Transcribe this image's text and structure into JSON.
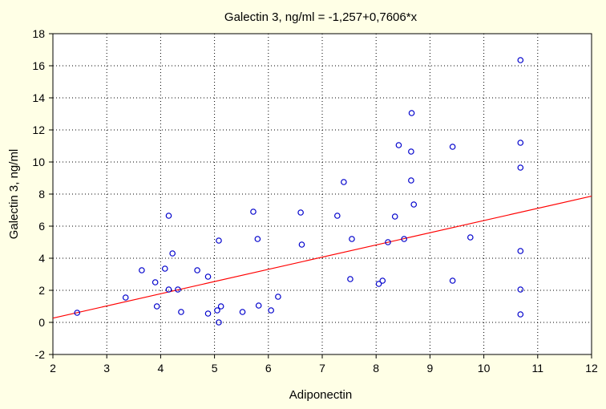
{
  "chart_data": {
    "type": "scatter",
    "title": "Galectin 3, ng/ml = -1,257+0,7606*x",
    "xlabel": "Adiponectin",
    "ylabel": "Galectin 3, ng/ml",
    "xlim": [
      2,
      12
    ],
    "ylim": [
      -2,
      18
    ],
    "xticks": [
      "2",
      "3",
      "4",
      "5",
      "6",
      "7",
      "8",
      "9",
      "10",
      "11",
      "12"
    ],
    "yticks": [
      "-2",
      "0",
      "2",
      "4",
      "6",
      "8",
      "10",
      "12",
      "14",
      "16",
      "18"
    ],
    "grid": true,
    "legend": "none",
    "fit": {
      "intercept": -1.257,
      "slope": 0.7606,
      "color": "#ff0000"
    },
    "point_color": "#0000cc",
    "points": [
      [
        2.45,
        0.6
      ],
      [
        3.35,
        1.55
      ],
      [
        3.65,
        3.25
      ],
      [
        3.9,
        2.5
      ],
      [
        3.93,
        1.0
      ],
      [
        4.08,
        3.35
      ],
      [
        4.15,
        6.65
      ],
      [
        4.15,
        2.05
      ],
      [
        4.22,
        4.3
      ],
      [
        4.32,
        2.05
      ],
      [
        4.38,
        0.65
      ],
      [
        4.68,
        3.25
      ],
      [
        4.88,
        2.85
      ],
      [
        4.88,
        0.55
      ],
      [
        5.05,
        0.75
      ],
      [
        5.08,
        5.1
      ],
      [
        5.08,
        0.0
      ],
      [
        5.12,
        1.0
      ],
      [
        5.52,
        0.65
      ],
      [
        5.72,
        6.9
      ],
      [
        5.8,
        5.2
      ],
      [
        5.82,
        1.05
      ],
      [
        6.05,
        0.75
      ],
      [
        6.18,
        1.6
      ],
      [
        6.6,
        6.85
      ],
      [
        6.62,
        4.85
      ],
      [
        7.28,
        6.65
      ],
      [
        7.4,
        8.75
      ],
      [
        7.52,
        2.7
      ],
      [
        7.55,
        5.2
      ],
      [
        8.05,
        2.4
      ],
      [
        8.12,
        2.6
      ],
      [
        8.22,
        5.0
      ],
      [
        8.35,
        6.6
      ],
      [
        8.42,
        11.05
      ],
      [
        8.52,
        5.2
      ],
      [
        8.65,
        10.65
      ],
      [
        8.65,
        8.85
      ],
      [
        8.66,
        13.05
      ],
      [
        8.7,
        7.35
      ],
      [
        9.42,
        10.95
      ],
      [
        9.42,
        2.6
      ],
      [
        9.75,
        5.3
      ],
      [
        10.68,
        16.35
      ],
      [
        10.68,
        11.2
      ],
      [
        10.68,
        9.65
      ],
      [
        10.68,
        4.45
      ],
      [
        10.68,
        2.05
      ],
      [
        10.68,
        0.5
      ]
    ]
  }
}
